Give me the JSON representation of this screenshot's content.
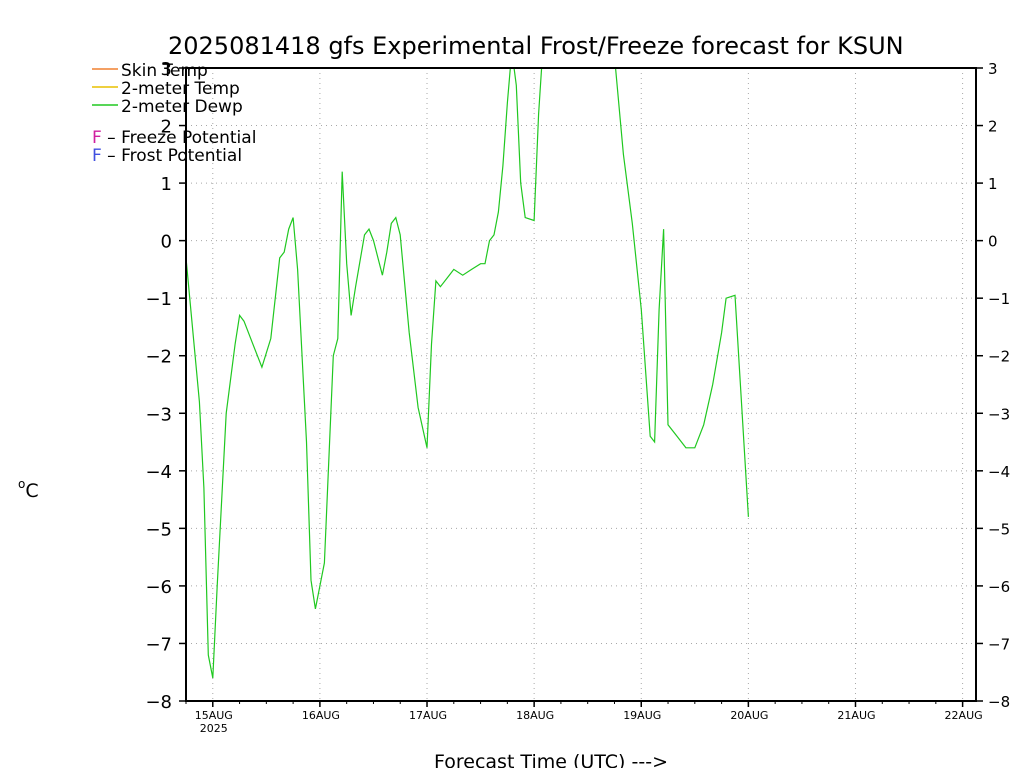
{
  "chart_data": {
    "type": "line",
    "title": "2025081418 gfs Experimental Frost/Freeze forecast for KSUN",
    "xlabel": "Forecast Time (UTC) --->",
    "ylabel": "°C",
    "ylabel_sup": "o",
    "ylabel_unit": "C",
    "ylim": [
      -8,
      3
    ],
    "yticks": [
      -8,
      -7,
      -6,
      -5,
      -4,
      -3,
      -2,
      -1,
      0,
      1,
      2,
      3
    ],
    "xlim": [
      "2025-08-14T18:00",
      "2025-08-22T03:00"
    ],
    "xticks": [
      {
        "t": "2025-08-15T00:00",
        "label": "15AUG",
        "sublabel": "2025"
      },
      {
        "t": "2025-08-16T00:00",
        "label": "16AUG"
      },
      {
        "t": "2025-08-17T00:00",
        "label": "17AUG"
      },
      {
        "t": "2025-08-18T00:00",
        "label": "18AUG"
      },
      {
        "t": "2025-08-19T00:00",
        "label": "19AUG"
      },
      {
        "t": "2025-08-20T00:00",
        "label": "20AUG"
      },
      {
        "t": "2025-08-21T00:00",
        "label": "21AUG"
      },
      {
        "t": "2025-08-22T00:00",
        "label": "22AUG"
      }
    ],
    "grid": true,
    "legend": {
      "position": "top-left",
      "series": [
        {
          "name": "Skin Temp",
          "color": "#f08030"
        },
        {
          "name": "2-meter Temp",
          "color": "#e8c000"
        },
        {
          "name": "2-meter Dewp",
          "color": "#20c820"
        }
      ],
      "markers": [
        {
          "letter": "F",
          "text": " – Freeze Potential",
          "color": "#d020a0"
        },
        {
          "letter": "F",
          "text": " – Frost Potential",
          "color": "#4050e0"
        }
      ]
    },
    "series": [
      {
        "name": "2-meter Dewp",
        "color": "#20c820",
        "points": [
          [
            "2025-08-14T18:00",
            -0.3
          ],
          [
            "2025-08-14T21:00",
            -2.8
          ],
          [
            "2025-08-14T22:00",
            -4.3
          ],
          [
            "2025-08-14T23:00",
            -7.2
          ],
          [
            "2025-08-15T00:00",
            -7.6
          ],
          [
            "2025-08-15T01:00",
            -6.0
          ],
          [
            "2025-08-15T03:00",
            -3.0
          ],
          [
            "2025-08-15T05:00",
            -1.8
          ],
          [
            "2025-08-15T06:00",
            -1.3
          ],
          [
            "2025-08-15T07:00",
            -1.4
          ],
          [
            "2025-08-15T09:00",
            -1.8
          ],
          [
            "2025-08-15T11:00",
            -2.2
          ],
          [
            "2025-08-15T13:00",
            -1.7
          ],
          [
            "2025-08-15T15:00",
            -0.3
          ],
          [
            "2025-08-15T16:00",
            -0.2
          ],
          [
            "2025-08-15T17:00",
            0.2
          ],
          [
            "2025-08-15T18:00",
            0.4
          ],
          [
            "2025-08-15T19:00",
            -0.5
          ],
          [
            "2025-08-15T21:00",
            -3.5
          ],
          [
            "2025-08-15T22:00",
            -5.9
          ],
          [
            "2025-08-15T23:00",
            -6.4
          ],
          [
            "2025-08-16T01:00",
            -5.6
          ],
          [
            "2025-08-16T03:00",
            -2.0
          ],
          [
            "2025-08-16T04:00",
            -1.7
          ],
          [
            "2025-08-16T05:00",
            1.2
          ],
          [
            "2025-08-16T06:00",
            -0.4
          ],
          [
            "2025-08-16T07:00",
            -1.3
          ],
          [
            "2025-08-16T08:00",
            -0.8
          ],
          [
            "2025-08-16T10:00",
            0.1
          ],
          [
            "2025-08-16T11:00",
            0.2
          ],
          [
            "2025-08-16T12:00",
            0.0
          ],
          [
            "2025-08-16T14:00",
            -0.6
          ],
          [
            "2025-08-16T15:00",
            -0.2
          ],
          [
            "2025-08-16T16:00",
            0.3
          ],
          [
            "2025-08-16T17:00",
            0.4
          ],
          [
            "2025-08-16T18:00",
            0.1
          ],
          [
            "2025-08-16T20:00",
            -1.6
          ],
          [
            "2025-08-16T22:00",
            -2.9
          ],
          [
            "2025-08-17T00:00",
            -3.6
          ],
          [
            "2025-08-17T01:00",
            -1.8
          ],
          [
            "2025-08-17T02:00",
            -0.7
          ],
          [
            "2025-08-17T03:00",
            -0.8
          ],
          [
            "2025-08-17T05:00",
            -0.6
          ],
          [
            "2025-08-17T06:00",
            -0.5
          ],
          [
            "2025-08-17T08:00",
            -0.6
          ],
          [
            "2025-08-17T10:00",
            -0.5
          ],
          [
            "2025-08-17T12:00",
            -0.4
          ],
          [
            "2025-08-17T13:00",
            -0.4
          ],
          [
            "2025-08-17T14:00",
            0.0
          ],
          [
            "2025-08-17T15:00",
            0.1
          ],
          [
            "2025-08-17T16:00",
            0.5
          ],
          [
            "2025-08-17T17:00",
            1.3
          ],
          [
            "2025-08-17T18:00",
            2.4
          ],
          [
            "2025-08-17T19:00",
            3.3
          ],
          [
            "2025-08-17T20:00",
            2.7
          ],
          [
            "2025-08-17T21:00",
            1.0
          ],
          [
            "2025-08-17T22:00",
            0.4
          ],
          [
            "2025-08-18T00:00",
            0.35
          ],
          [
            "2025-08-18T01:00",
            2.2
          ],
          [
            "2025-08-18T02:00",
            3.4
          ],
          [
            "2025-08-18T10:00",
            3.4
          ],
          [
            "2025-08-18T18:00",
            3.2
          ],
          [
            "2025-08-18T20:00",
            1.5
          ],
          [
            "2025-08-18T22:00",
            0.3
          ],
          [
            "2025-08-19T00:00",
            -1.2
          ],
          [
            "2025-08-19T02:00",
            -3.4
          ],
          [
            "2025-08-19T03:00",
            -3.5
          ],
          [
            "2025-08-19T04:00",
            -1.2
          ],
          [
            "2025-08-19T05:00",
            0.2
          ],
          [
            "2025-08-19T06:00",
            -3.2
          ],
          [
            "2025-08-19T08:00",
            -3.4
          ],
          [
            "2025-08-19T10:00",
            -3.6
          ],
          [
            "2025-08-19T12:00",
            -3.6
          ],
          [
            "2025-08-19T14:00",
            -3.2
          ],
          [
            "2025-08-19T16:00",
            -2.5
          ],
          [
            "2025-08-19T18:00",
            -1.6
          ],
          [
            "2025-08-19T19:00",
            -1.0
          ],
          [
            "2025-08-19T21:00",
            -0.95
          ],
          [
            "2025-08-20T00:00",
            -4.8
          ]
        ]
      }
    ]
  }
}
